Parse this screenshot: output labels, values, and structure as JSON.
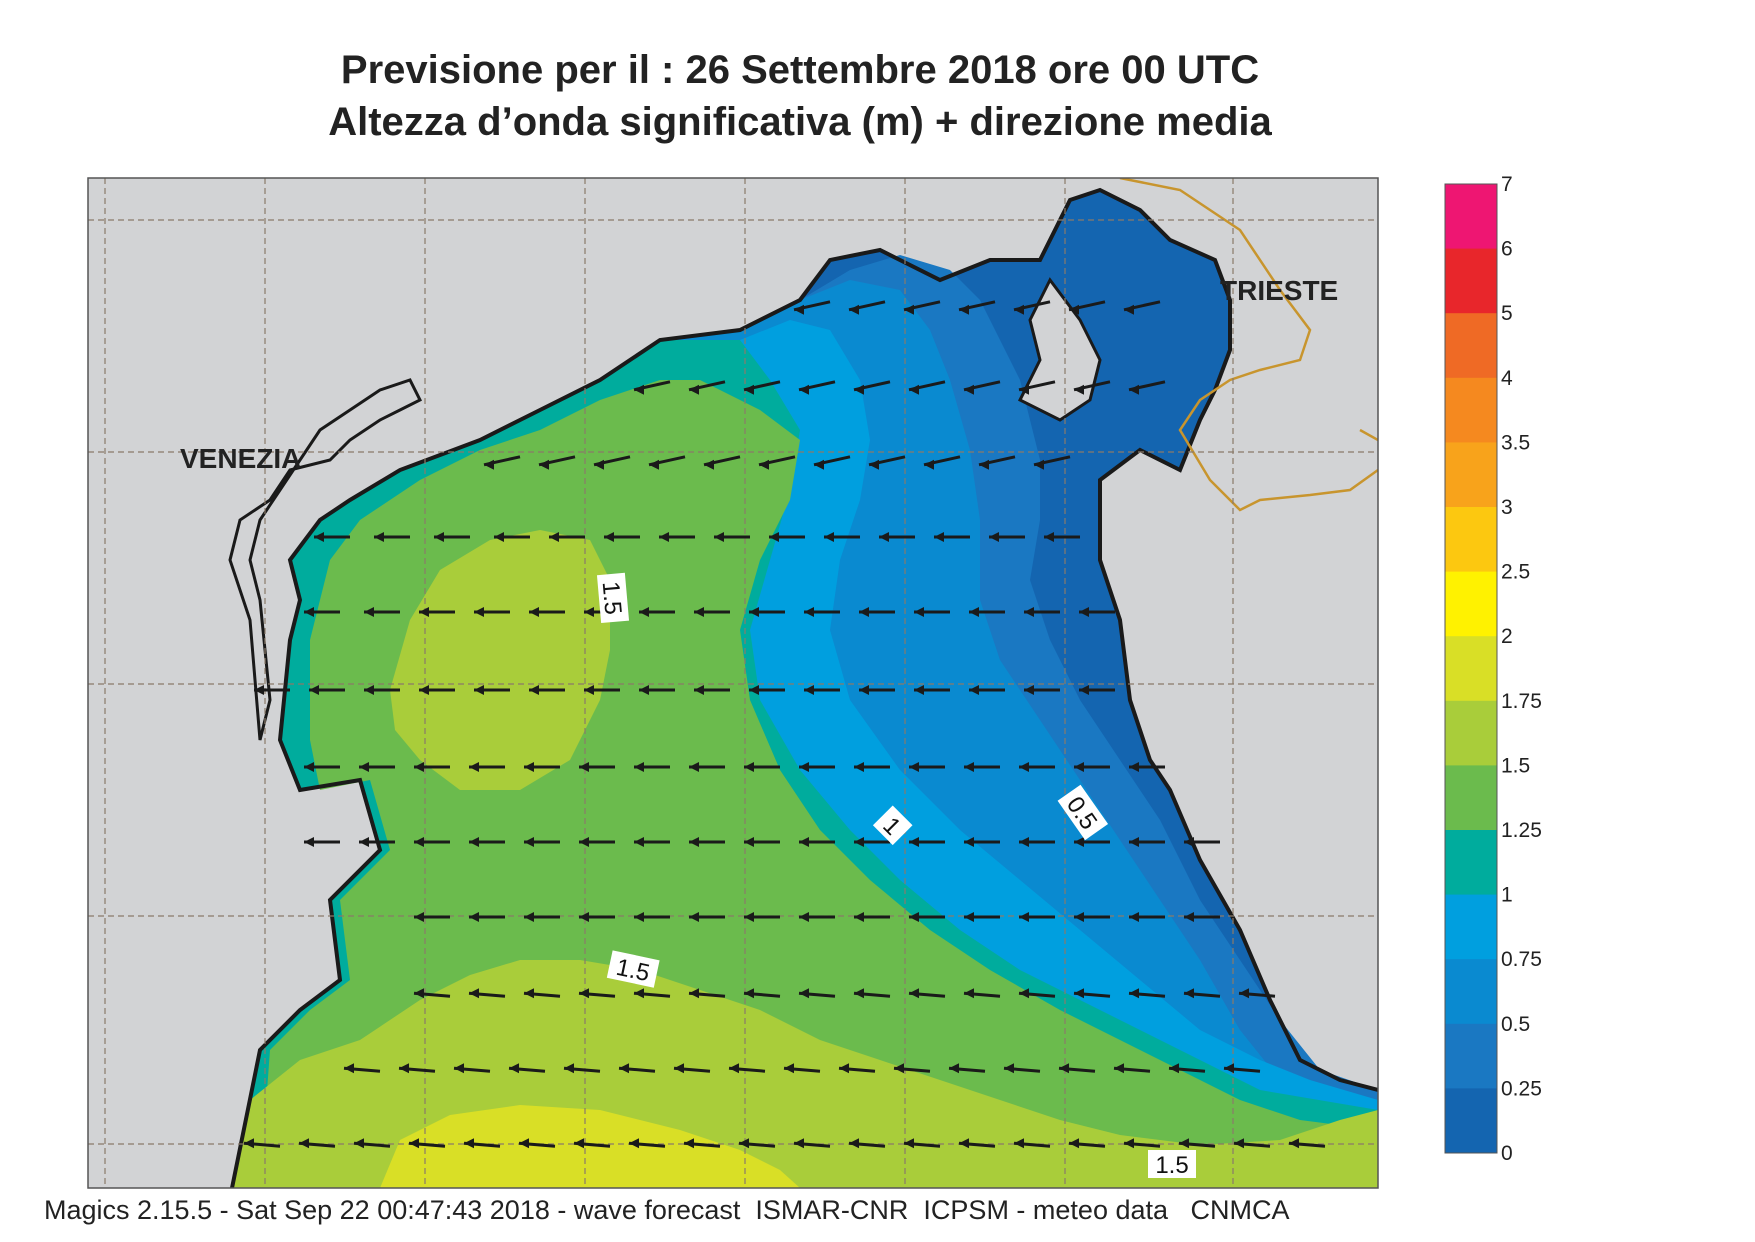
{
  "header": {
    "title_line1": "Previsione per il  :  26 Settembre 2018   ore 00 UTC",
    "title_line2": "Altezza d’onda significativa (m) + direzione media"
  },
  "map": {
    "cities": [
      {
        "name": "VENEZIA"
      },
      {
        "name": "TRIESTE"
      }
    ],
    "contour_labels": [
      "1.5",
      "1",
      "0.5",
      "1.5",
      "1.5"
    ],
    "arrow_direction": "westward",
    "colors": {
      "land": "#d2d3d5",
      "coast": "#1a1a1a",
      "border": "#c8952e",
      "grid": "#8a7a6a"
    }
  },
  "legend": {
    "labels": [
      "7",
      "6",
      "5",
      "4",
      "3.5",
      "3",
      "2.5",
      "2",
      "1.75",
      "1.5",
      "1.25",
      "1",
      "0.75",
      "0.5",
      "0.25",
      "0"
    ],
    "colors": [
      "#ee1672",
      "#e8262b",
      "#ef6a25",
      "#f5891f",
      "#f8a31b",
      "#fcc810",
      "#fff200",
      "#d9df26",
      "#a9cd3a",
      "#6bbb4d",
      "#00ac9d",
      "#009fdf",
      "#0a8ad0",
      "#1a78c2",
      "#1465b0"
    ]
  },
  "footer": {
    "text": "Magics 2.15.5 - Sat Sep 22 00:47:43 2018 - wave forecast  ISMAR-CNR  ICPSM - meteo data   CNMCA"
  }
}
